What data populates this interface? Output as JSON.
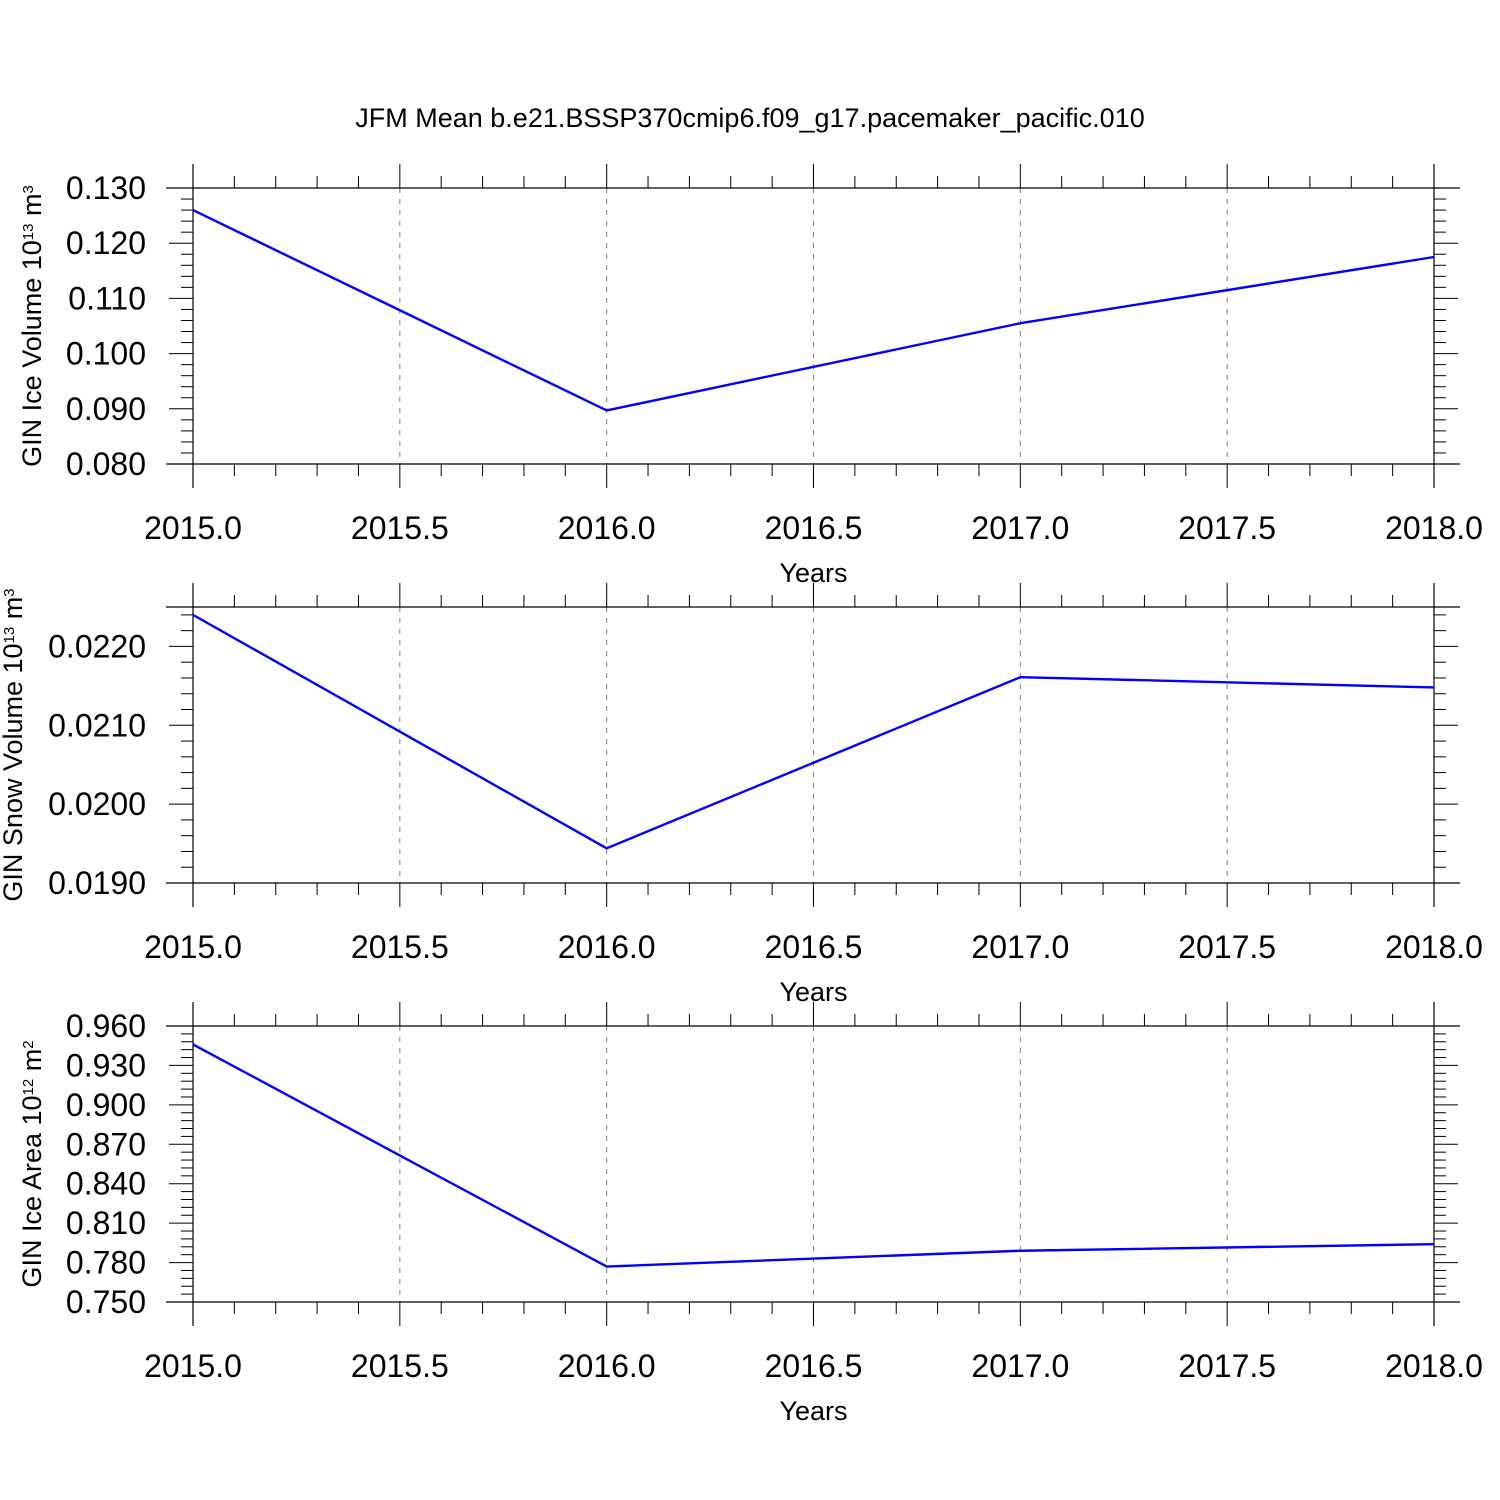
{
  "figure": {
    "title": "JFM Mean b.e21.BSSP370cmip6.f09_g17.pacemaker_pacific.010"
  },
  "line_color": "#0000ff",
  "chart_data": [
    {
      "type": "line",
      "xlabel": "Years",
      "ylabel": {
        "text": "GIN Ice Volume 10",
        "sup": "13",
        "unit": " m",
        "unit_sup": "3"
      },
      "xlim": [
        2015.0,
        2018.0
      ],
      "ylim": [
        0.08,
        0.13
      ],
      "xticks": [
        "2015.0",
        "2015.5",
        "2016.0",
        "2016.5",
        "2017.0",
        "2017.5",
        "2018.0"
      ],
      "yticks": [
        "0.080",
        "0.090",
        "0.100",
        "0.110",
        "0.120",
        "0.130"
      ],
      "grid": "vertical dashed",
      "x": [
        2015.0,
        2016.0,
        2017.0,
        2018.0
      ],
      "values": [
        0.126,
        0.0897,
        0.1055,
        0.1175
      ]
    },
    {
      "type": "line",
      "xlabel": "Years",
      "ylabel": {
        "text": "GIN Snow Volume 10",
        "sup": "13",
        "unit": " m",
        "unit_sup": "3"
      },
      "xlim": [
        2015.0,
        2018.0
      ],
      "ylim": [
        0.019,
        0.0225
      ],
      "xticks": [
        "2015.0",
        "2015.5",
        "2016.0",
        "2016.5",
        "2017.0",
        "2017.5",
        "2018.0"
      ],
      "yticks": [
        "0.0190",
        "0.0200",
        "0.0210",
        "0.0220"
      ],
      "grid": "vertical dashed",
      "x": [
        2015.0,
        2016.0,
        2017.0,
        2018.0
      ],
      "values": [
        0.0224,
        0.01944,
        0.02161,
        0.02148
      ]
    },
    {
      "type": "line",
      "xlabel": "Years",
      "ylabel": {
        "text": "GIN Ice Area 10",
        "sup": "12",
        "unit": " m",
        "unit_sup": "2"
      },
      "xlim": [
        2015.0,
        2018.0
      ],
      "ylim": [
        0.75,
        0.96
      ],
      "xticks": [
        "2015.0",
        "2015.5",
        "2016.0",
        "2016.5",
        "2017.0",
        "2017.5",
        "2018.0"
      ],
      "yticks": [
        "0.750",
        "0.780",
        "0.810",
        "0.840",
        "0.870",
        "0.900",
        "0.930",
        "0.960"
      ],
      "grid": "vertical dashed",
      "x": [
        2015.0,
        2016.0,
        2017.0,
        2018.0
      ],
      "values": [
        0.946,
        0.777,
        0.789,
        0.794
      ]
    }
  ]
}
